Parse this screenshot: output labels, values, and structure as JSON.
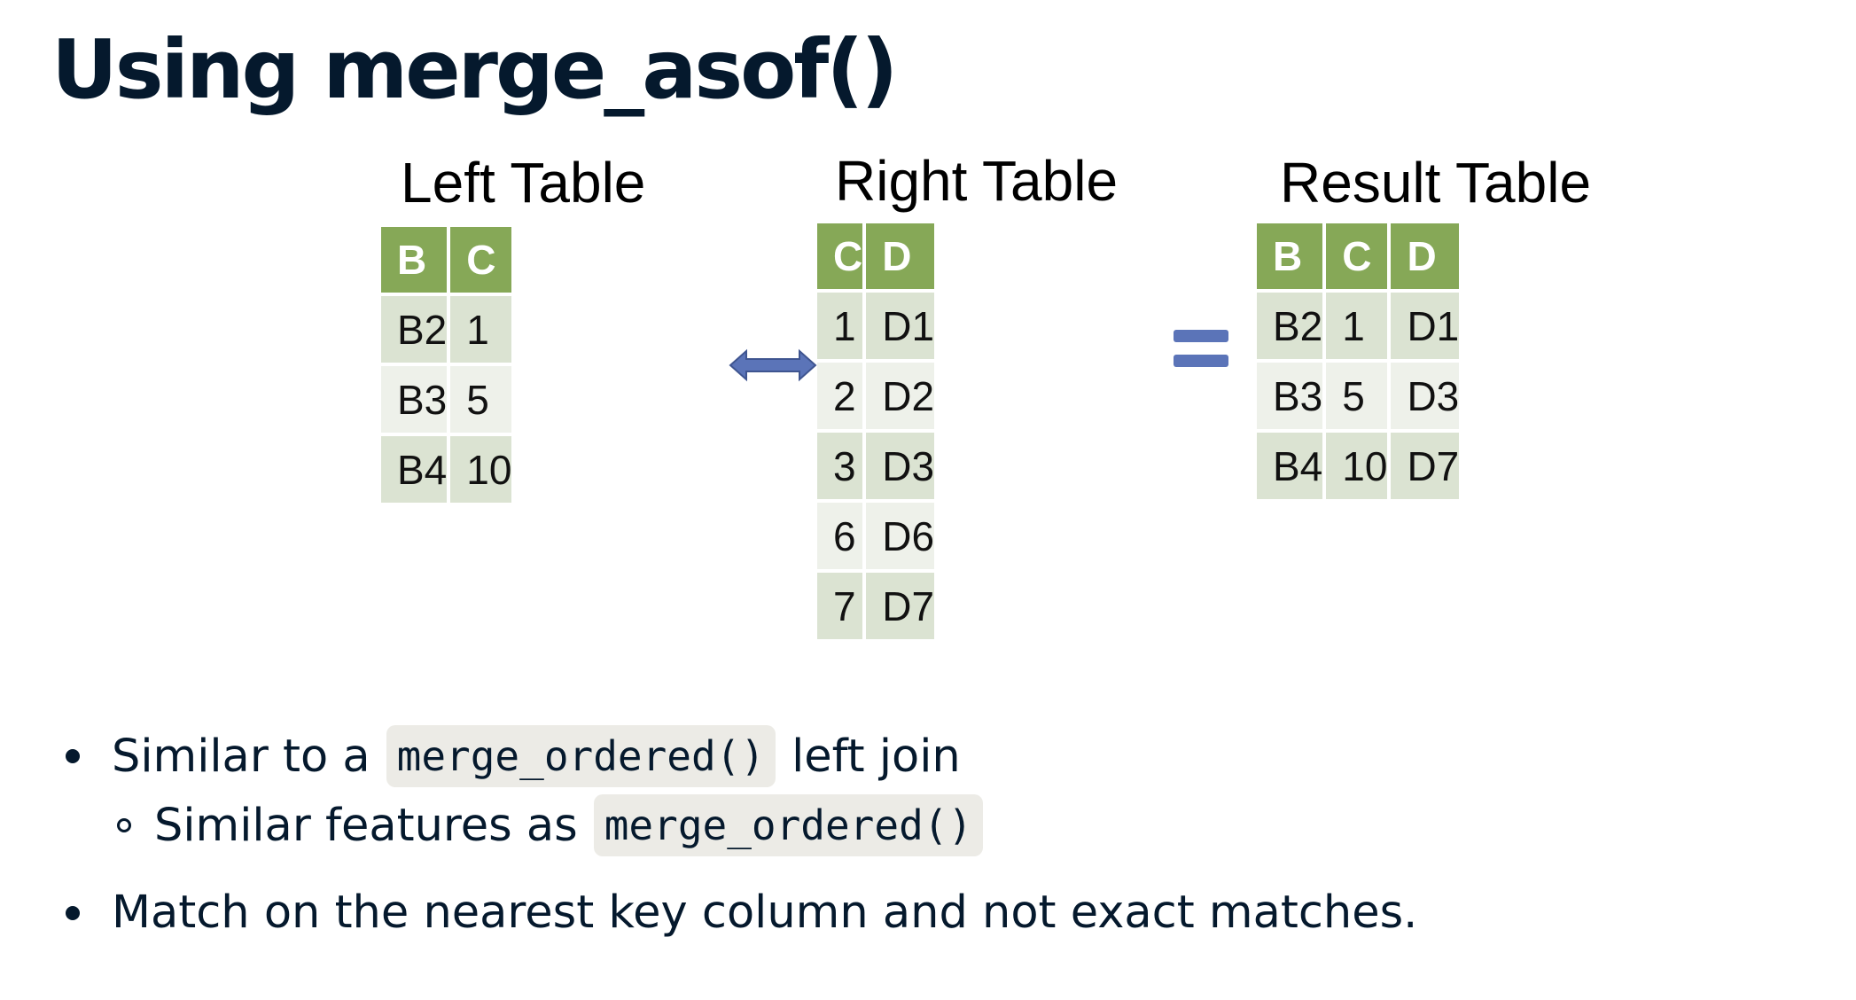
{
  "title": "Using merge_asof()",
  "left_table": {
    "caption": "Left Table",
    "columns": [
      "B",
      "C"
    ],
    "rows": [
      [
        "B2",
        "1"
      ],
      [
        "B3",
        "5"
      ],
      [
        "B4",
        "10"
      ]
    ]
  },
  "right_table": {
    "caption": "Right Table",
    "columns": [
      "C",
      "D"
    ],
    "rows": [
      [
        "1",
        "D1"
      ],
      [
        "2",
        "D2"
      ],
      [
        "3",
        "D3"
      ],
      [
        "6",
        "D6"
      ],
      [
        "7",
        "D7"
      ]
    ]
  },
  "result_table": {
    "caption": "Result Table",
    "columns": [
      "B",
      "C",
      "D"
    ],
    "rows": [
      [
        "B2",
        "1",
        "D1"
      ],
      [
        "B3",
        "5",
        "D3"
      ],
      [
        "B4",
        "10",
        "D7"
      ]
    ]
  },
  "icons": {
    "join_arrow": "double-headed-arrow-icon",
    "equals": "equals-icon"
  },
  "colors": {
    "header_green": "#86a857",
    "row_dark": "#dbe3d2",
    "row_light": "#eef1ea",
    "arrow_blue": "#5b74b8",
    "text_navy": "#05192d"
  },
  "bullets": {
    "b1_pre": "Similar to a",
    "b1_code": "merge_ordered()",
    "b1_post": "left join",
    "b1a_pre": "Similar features as",
    "b1a_code": "merge_ordered()",
    "b2": "Match on the nearest key column and not exact matches."
  }
}
